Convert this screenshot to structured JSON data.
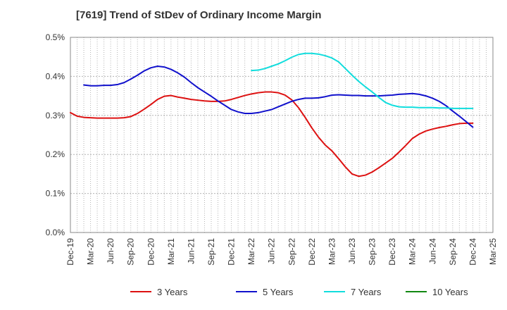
{
  "title": "[7619]  Trend of StDev of Ordinary Income Margin",
  "chart_data": {
    "type": "line",
    "title": "[7619]  Trend of StDev of Ordinary Income Margin",
    "xlabel": "",
    "ylabel": "",
    "ylim": [
      0,
      0.5
    ],
    "y_unit": "%",
    "y_ticks": [
      "0.0%",
      "0.1%",
      "0.2%",
      "0.3%",
      "0.4%",
      "0.5%"
    ],
    "x_ticks": [
      "Dec-19",
      "Mar-20",
      "Jun-20",
      "Sep-20",
      "Dec-20",
      "Mar-21",
      "Jun-21",
      "Sep-21",
      "Dec-21",
      "Mar-22",
      "Jun-22",
      "Sep-22",
      "Dec-22",
      "Mar-23",
      "Jun-23",
      "Sep-23",
      "Dec-23",
      "Mar-24",
      "Jun-24",
      "Sep-24",
      "Dec-24",
      "Mar-25"
    ],
    "grid": true,
    "legend_position": "bottom",
    "series": [
      {
        "name": "3 Years",
        "color": "#dd1111",
        "values": [
          [
            "Dec-19",
            0.307
          ],
          [
            "Jan-20",
            0.298
          ],
          [
            "Feb-20",
            0.295
          ],
          [
            "Mar-20",
            0.294
          ],
          [
            "Apr-20",
            0.293
          ],
          [
            "May-20",
            0.293
          ],
          [
            "Jun-20",
            0.293
          ],
          [
            "Jul-20",
            0.293
          ],
          [
            "Aug-20",
            0.294
          ],
          [
            "Sep-20",
            0.297
          ],
          [
            "Oct-20",
            0.305
          ],
          [
            "Nov-20",
            0.316
          ],
          [
            "Dec-20",
            0.328
          ],
          [
            "Jan-21",
            0.341
          ],
          [
            "Feb-21",
            0.349
          ],
          [
            "Mar-21",
            0.351
          ],
          [
            "Apr-21",
            0.347
          ],
          [
            "May-21",
            0.344
          ],
          [
            "Jun-21",
            0.341
          ],
          [
            "Jul-21",
            0.339
          ],
          [
            "Aug-21",
            0.337
          ],
          [
            "Sep-21",
            0.336
          ],
          [
            "Oct-21",
            0.336
          ],
          [
            "Nov-21",
            0.337
          ],
          [
            "Dec-21",
            0.341
          ],
          [
            "Jan-22",
            0.346
          ],
          [
            "Feb-22",
            0.351
          ],
          [
            "Mar-22",
            0.355
          ],
          [
            "Apr-22",
            0.358
          ],
          [
            "May-22",
            0.36
          ],
          [
            "Jun-22",
            0.36
          ],
          [
            "Jul-22",
            0.358
          ],
          [
            "Aug-22",
            0.352
          ],
          [
            "Sep-22",
            0.34
          ],
          [
            "Oct-22",
            0.32
          ],
          [
            "Nov-22",
            0.295
          ],
          [
            "Dec-22",
            0.268
          ],
          [
            "Jan-23",
            0.244
          ],
          [
            "Feb-23",
            0.224
          ],
          [
            "Mar-23",
            0.209
          ],
          [
            "Apr-23",
            0.189
          ],
          [
            "May-23",
            0.168
          ],
          [
            "Jun-23",
            0.15
          ],
          [
            "Jul-23",
            0.144
          ],
          [
            "Aug-23",
            0.147
          ],
          [
            "Sep-23",
            0.155
          ],
          [
            "Oct-23",
            0.166
          ],
          [
            "Nov-23",
            0.178
          ],
          [
            "Dec-23",
            0.19
          ],
          [
            "Jan-24",
            0.206
          ],
          [
            "Feb-24",
            0.223
          ],
          [
            "Mar-24",
            0.241
          ],
          [
            "Apr-24",
            0.252
          ],
          [
            "May-24",
            0.26
          ],
          [
            "Jun-24",
            0.265
          ],
          [
            "Jul-24",
            0.269
          ],
          [
            "Aug-24",
            0.272
          ],
          [
            "Sep-24",
            0.276
          ],
          [
            "Oct-24",
            0.279
          ],
          [
            "Nov-24",
            0.28
          ],
          [
            "Dec-24",
            0.28
          ]
        ]
      },
      {
        "name": "5 Years",
        "color": "#1111cc",
        "values": [
          [
            "Feb-20",
            0.378
          ],
          [
            "Mar-20",
            0.376
          ],
          [
            "Apr-20",
            0.376
          ],
          [
            "May-20",
            0.377
          ],
          [
            "Jun-20",
            0.377
          ],
          [
            "Jul-20",
            0.379
          ],
          [
            "Aug-20",
            0.384
          ],
          [
            "Sep-20",
            0.393
          ],
          [
            "Oct-20",
            0.403
          ],
          [
            "Nov-20",
            0.414
          ],
          [
            "Dec-20",
            0.422
          ],
          [
            "Jan-21",
            0.426
          ],
          [
            "Feb-21",
            0.424
          ],
          [
            "Mar-21",
            0.418
          ],
          [
            "Apr-21",
            0.409
          ],
          [
            "May-21",
            0.398
          ],
          [
            "Jun-21",
            0.384
          ],
          [
            "Jul-21",
            0.371
          ],
          [
            "Aug-21",
            0.36
          ],
          [
            "Sep-21",
            0.349
          ],
          [
            "Oct-21",
            0.337
          ],
          [
            "Nov-21",
            0.326
          ],
          [
            "Dec-21",
            0.315
          ],
          [
            "Jan-22",
            0.309
          ],
          [
            "Feb-22",
            0.305
          ],
          [
            "Mar-22",
            0.305
          ],
          [
            "Apr-22",
            0.307
          ],
          [
            "May-22",
            0.311
          ],
          [
            "Jun-22",
            0.315
          ],
          [
            "Jul-22",
            0.322
          ],
          [
            "Aug-22",
            0.329
          ],
          [
            "Sep-22",
            0.336
          ],
          [
            "Oct-22",
            0.341
          ],
          [
            "Nov-22",
            0.344
          ],
          [
            "Dec-22",
            0.344
          ],
          [
            "Jan-23",
            0.345
          ],
          [
            "Feb-23",
            0.348
          ],
          [
            "Mar-23",
            0.352
          ],
          [
            "Apr-23",
            0.353
          ],
          [
            "May-23",
            0.352
          ],
          [
            "Jun-23",
            0.351
          ],
          [
            "Jul-23",
            0.351
          ],
          [
            "Aug-23",
            0.35
          ],
          [
            "Sep-23",
            0.35
          ],
          [
            "Oct-23",
            0.35
          ],
          [
            "Nov-23",
            0.351
          ],
          [
            "Dec-23",
            0.352
          ],
          [
            "Jan-24",
            0.354
          ],
          [
            "Feb-24",
            0.355
          ],
          [
            "Mar-24",
            0.356
          ],
          [
            "Apr-24",
            0.354
          ],
          [
            "May-24",
            0.35
          ],
          [
            "Jun-24",
            0.344
          ],
          [
            "Jul-24",
            0.336
          ],
          [
            "Aug-24",
            0.325
          ],
          [
            "Sep-24",
            0.311
          ],
          [
            "Oct-24",
            0.298
          ],
          [
            "Nov-24",
            0.284
          ],
          [
            "Dec-24",
            0.27
          ]
        ]
      },
      {
        "name": "7 Years",
        "color": "#11dddd",
        "values": [
          [
            "Mar-22",
            0.415
          ],
          [
            "Apr-22",
            0.416
          ],
          [
            "May-22",
            0.42
          ],
          [
            "Jun-22",
            0.426
          ],
          [
            "Jul-22",
            0.432
          ],
          [
            "Aug-22",
            0.44
          ],
          [
            "Sep-22",
            0.449
          ],
          [
            "Oct-22",
            0.456
          ],
          [
            "Nov-22",
            0.459
          ],
          [
            "Dec-22",
            0.459
          ],
          [
            "Jan-23",
            0.457
          ],
          [
            "Feb-23",
            0.453
          ],
          [
            "Mar-23",
            0.447
          ],
          [
            "Apr-23",
            0.437
          ],
          [
            "May-23",
            0.42
          ],
          [
            "Jun-23",
            0.403
          ],
          [
            "Jul-23",
            0.387
          ],
          [
            "Aug-23",
            0.373
          ],
          [
            "Sep-23",
            0.36
          ],
          [
            "Oct-23",
            0.346
          ],
          [
            "Nov-23",
            0.333
          ],
          [
            "Dec-23",
            0.326
          ],
          [
            "Jan-24",
            0.322
          ],
          [
            "Feb-24",
            0.321
          ],
          [
            "Mar-24",
            0.321
          ],
          [
            "Apr-24",
            0.32
          ],
          [
            "May-24",
            0.32
          ],
          [
            "Jun-24",
            0.32
          ],
          [
            "Jul-24",
            0.319
          ],
          [
            "Aug-24",
            0.319
          ],
          [
            "Sep-24",
            0.318
          ],
          [
            "Oct-24",
            0.318
          ],
          [
            "Nov-24",
            0.318
          ],
          [
            "Dec-24",
            0.318
          ]
        ]
      },
      {
        "name": "10 Years",
        "color": "#118811",
        "values": []
      }
    ]
  }
}
